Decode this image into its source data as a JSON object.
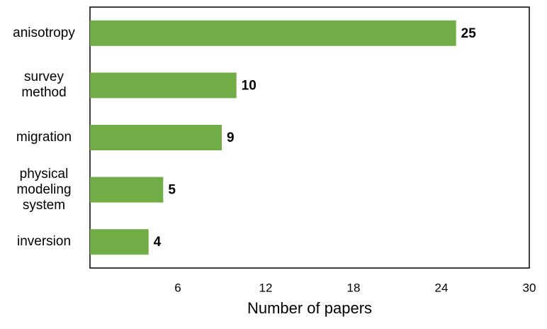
{
  "chart_data": {
    "type": "barh",
    "categories": [
      "anisotropy",
      "survey method",
      "migration",
      "physical modeling system",
      "inversion"
    ],
    "values": [
      25,
      10,
      9,
      5,
      4
    ],
    "color": "#70ad47",
    "xlabel": "Number of papers",
    "xlim": [
      0,
      30
    ],
    "xticks": [
      6,
      12,
      18,
      24,
      30
    ]
  }
}
